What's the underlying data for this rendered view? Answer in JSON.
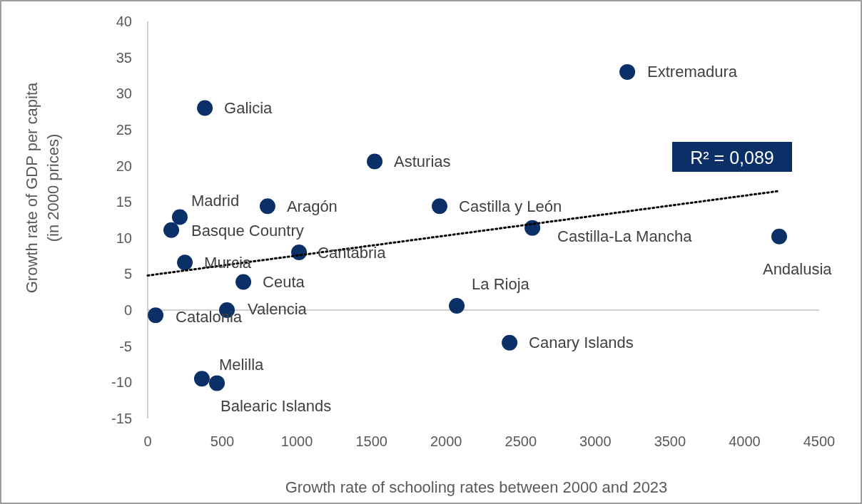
{
  "chart_data": {
    "type": "scatter",
    "xlabel": "Growth rate of schooling rates between 2000 and 2023",
    "ylabel": "Growth rate of GDP per capita\n(in 2000 prices)",
    "xlim": [
      0,
      4500
    ],
    "xticks": [
      0,
      500,
      1000,
      1500,
      2000,
      2500,
      3000,
      3500,
      4000,
      4500
    ],
    "ylim": [
      -15,
      40
    ],
    "yticks": [
      -15,
      -10,
      -5,
      0,
      5,
      10,
      15,
      20,
      25,
      30,
      35,
      40
    ],
    "marker": "circle",
    "series": [
      {
        "color": "#0b3068",
        "x": [
          3214,
          383,
          1521,
          215,
          803,
          1956,
          158,
          2578,
          4232,
          1014,
          249,
          641,
          2071,
          531,
          53,
          2425,
          363,
          464
        ],
        "values": [
          33.0,
          28.0,
          20.6,
          12.9,
          14.4,
          14.4,
          11.1,
          11.4,
          10.2,
          8.0,
          6.6,
          3.9,
          0.6,
          0.0,
          -0.7,
          -4.5,
          -9.5,
          -10.1
        ]
      },
      {
        "type": "line",
        "color": "#000000",
        "line_style": "dotted",
        "marker": "none",
        "x": [
          0,
          4230
        ],
        "values": [
          4.8,
          16.5
        ]
      }
    ],
    "annotations": [
      {
        "text": "Extremadura",
        "x": 3214,
        "y": 33.0
      },
      {
        "text": "Galicia",
        "x": 383,
        "y": 28.0
      },
      {
        "text": "Asturias",
        "x": 1521,
        "y": 20.6
      },
      {
        "text": "Madrid",
        "x": 215,
        "y": 12.9
      },
      {
        "text": "Aragón",
        "x": 803,
        "y": 14.4
      },
      {
        "text": "Castilla y León",
        "x": 1956,
        "y": 14.4
      },
      {
        "text": "Basque Country",
        "x": 158,
        "y": 11.1
      },
      {
        "text": "Castilla-La Mancha",
        "x": 2578,
        "y": 11.4
      },
      {
        "text": "Andalusia",
        "x": 4232,
        "y": 10.2
      },
      {
        "text": "Cantabria",
        "x": 1014,
        "y": 8.0
      },
      {
        "text": "Murcia",
        "x": 249,
        "y": 6.6
      },
      {
        "text": "Ceuta",
        "x": 641,
        "y": 3.9
      },
      {
        "text": "La Rioja",
        "x": 2071,
        "y": 0.6
      },
      {
        "text": "Valencia",
        "x": 531,
        "y": 0.0
      },
      {
        "text": "Catalonia",
        "x": 53,
        "y": -0.7
      },
      {
        "text": "Canary Islands",
        "x": 2425,
        "y": -4.5
      },
      {
        "text": "Melilla",
        "x": 363,
        "y": -9.5
      },
      {
        "text": "Balearic Islands",
        "x": 464,
        "y": -10.1
      },
      "R² = 0,089"
    ]
  }
}
